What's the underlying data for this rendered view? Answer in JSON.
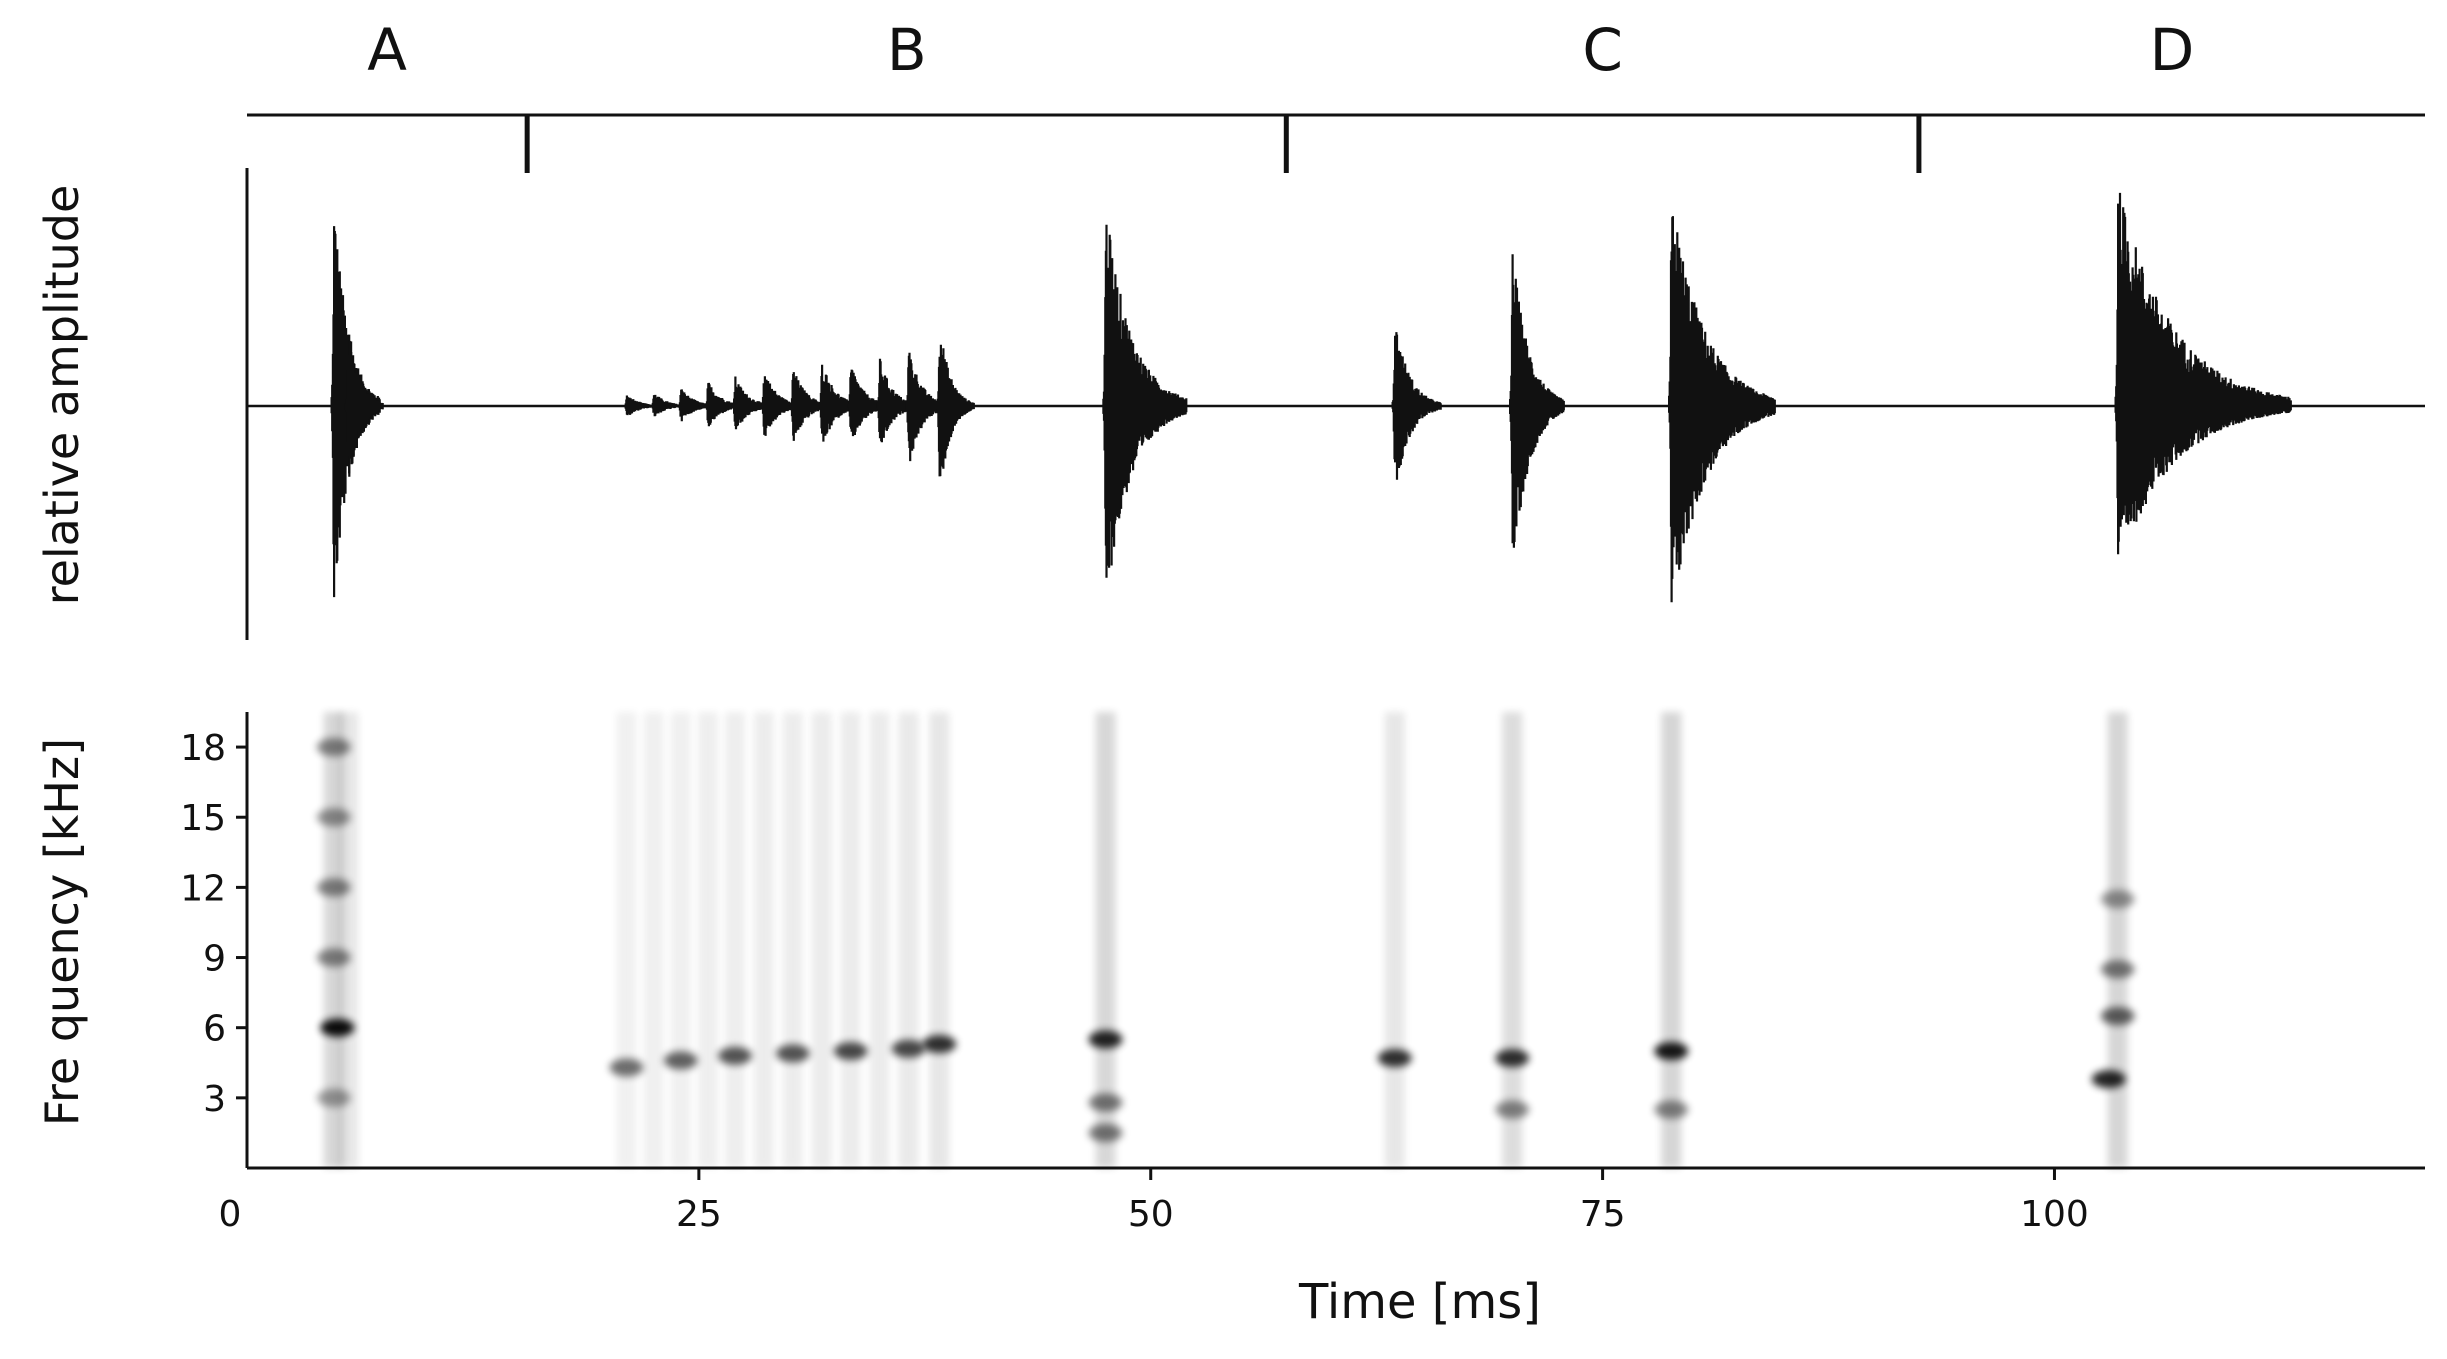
{
  "chart_data": {
    "type": "line",
    "title": "",
    "segments": [
      {
        "label": "A",
        "start_ms": 0,
        "end_ms": 15.5
      },
      {
        "label": "B",
        "start_ms": 15.5,
        "end_ms": 57.5
      },
      {
        "label": "C",
        "start_ms": 57.5,
        "end_ms": 92.5
      },
      {
        "label": "D",
        "start_ms": 92.5,
        "end_ms": 120.5
      }
    ],
    "xlabel": "Time [ms]",
    "xlim": [
      0,
      120.5
    ],
    "x_ticks": [
      0,
      25,
      50,
      75,
      100
    ],
    "panels": [
      {
        "name": "oscillogram",
        "ylabel": "relative amplitude",
        "ylim": [
          -1,
          1
        ],
        "bursts": [
          {
            "t_ms": 4.8,
            "amp_up": 0.9,
            "amp_down": -0.9,
            "decay_ms": 0.8
          },
          {
            "t_ms": 5.6,
            "amp_up": 0.37,
            "amp_down": -0.36,
            "decay_ms": 0.6
          },
          {
            "t_ms": 21.0,
            "amp_up": 0.05,
            "amp_down": -0.05,
            "decay_ms": 0.7
          },
          {
            "t_ms": 22.5,
            "amp_up": 0.06,
            "amp_down": -0.05,
            "decay_ms": 0.7
          },
          {
            "t_ms": 24.0,
            "amp_up": 0.08,
            "amp_down": -0.07,
            "decay_ms": 0.7
          },
          {
            "t_ms": 25.5,
            "amp_up": 0.11,
            "amp_down": -0.1,
            "decay_ms": 0.7
          },
          {
            "t_ms": 27.0,
            "amp_up": 0.13,
            "amp_down": -0.12,
            "decay_ms": 0.7
          },
          {
            "t_ms": 28.6,
            "amp_up": 0.16,
            "amp_down": -0.15,
            "decay_ms": 0.7
          },
          {
            "t_ms": 30.2,
            "amp_up": 0.17,
            "amp_down": -0.17,
            "decay_ms": 0.7
          },
          {
            "t_ms": 31.8,
            "amp_up": 0.2,
            "amp_down": -0.19,
            "decay_ms": 0.7
          },
          {
            "t_ms": 33.4,
            "amp_up": 0.19,
            "amp_down": -0.18,
            "decay_ms": 0.7
          },
          {
            "t_ms": 35.0,
            "amp_up": 0.21,
            "amp_down": -0.2,
            "decay_ms": 0.7
          },
          {
            "t_ms": 36.6,
            "amp_up": 0.26,
            "amp_down": -0.27,
            "decay_ms": 0.7
          },
          {
            "t_ms": 38.3,
            "amp_up": 0.37,
            "amp_down": -0.4,
            "decay_ms": 0.6
          },
          {
            "t_ms": 47.5,
            "amp_up": 0.86,
            "amp_down": -0.86,
            "decay_ms": 1.4
          },
          {
            "t_ms": 63.5,
            "amp_up": 0.38,
            "amp_down": -0.38,
            "decay_ms": 0.8
          },
          {
            "t_ms": 70.0,
            "amp_up": 0.68,
            "amp_down": -0.73,
            "decay_ms": 0.9
          },
          {
            "t_ms": 78.8,
            "amp_up": 0.91,
            "amp_down": -0.93,
            "decay_ms": 1.8
          },
          {
            "t_ms": 103.5,
            "amp_up": 0.95,
            "amp_down": -0.7,
            "decay_ms": 3.0
          }
        ]
      },
      {
        "name": "spectrogram",
        "ylabel": "Fre quency [kHz]",
        "ylim": [
          0,
          19.5
        ],
        "y_ticks": [
          0,
          3,
          6,
          9,
          12,
          15,
          18
        ],
        "energy_spots": [
          {
            "t_ms": 5.0,
            "f_khz": 6.0,
            "intensity": 0.95
          },
          {
            "t_ms": 4.8,
            "f_khz": 18.0,
            "intensity": 0.45
          },
          {
            "t_ms": 4.8,
            "f_khz": 15.0,
            "intensity": 0.4
          },
          {
            "t_ms": 4.8,
            "f_khz": 12.0,
            "intensity": 0.45
          },
          {
            "t_ms": 4.8,
            "f_khz": 9.0,
            "intensity": 0.45
          },
          {
            "t_ms": 4.8,
            "f_khz": 3.0,
            "intensity": 0.35
          },
          {
            "t_ms": 21.0,
            "f_khz": 4.3,
            "intensity": 0.55
          },
          {
            "t_ms": 24.0,
            "f_khz": 4.6,
            "intensity": 0.6
          },
          {
            "t_ms": 27.0,
            "f_khz": 4.8,
            "intensity": 0.65
          },
          {
            "t_ms": 30.2,
            "f_khz": 4.9,
            "intensity": 0.65
          },
          {
            "t_ms": 33.4,
            "f_khz": 5.0,
            "intensity": 0.7
          },
          {
            "t_ms": 36.6,
            "f_khz": 5.1,
            "intensity": 0.7
          },
          {
            "t_ms": 38.3,
            "f_khz": 5.3,
            "intensity": 0.8
          },
          {
            "t_ms": 47.5,
            "f_khz": 5.5,
            "intensity": 0.85
          },
          {
            "t_ms": 47.5,
            "f_khz": 2.8,
            "intensity": 0.5
          },
          {
            "t_ms": 47.5,
            "f_khz": 1.5,
            "intensity": 0.5
          },
          {
            "t_ms": 63.5,
            "f_khz": 4.7,
            "intensity": 0.8
          },
          {
            "t_ms": 70.0,
            "f_khz": 4.7,
            "intensity": 0.8
          },
          {
            "t_ms": 70.0,
            "f_khz": 2.5,
            "intensity": 0.45
          },
          {
            "t_ms": 78.8,
            "f_khz": 5.0,
            "intensity": 0.9
          },
          {
            "t_ms": 78.8,
            "f_khz": 2.5,
            "intensity": 0.45
          },
          {
            "t_ms": 103.0,
            "f_khz": 3.8,
            "intensity": 0.85
          },
          {
            "t_ms": 103.5,
            "f_khz": 6.5,
            "intensity": 0.6
          },
          {
            "t_ms": 103.5,
            "f_khz": 8.5,
            "intensity": 0.5
          },
          {
            "t_ms": 103.5,
            "f_khz": 11.5,
            "intensity": 0.4
          }
        ],
        "horizontal_bands": [
          {
            "from_ms": 0,
            "to_ms": 120.5,
            "f_khz": 4.5,
            "intensity": 0.25
          },
          {
            "from_ms": 94,
            "to_ms": 120.5,
            "f_khz": 4.0,
            "intensity": 0.4
          }
        ]
      }
    ],
    "grid": false,
    "legend": "none"
  }
}
